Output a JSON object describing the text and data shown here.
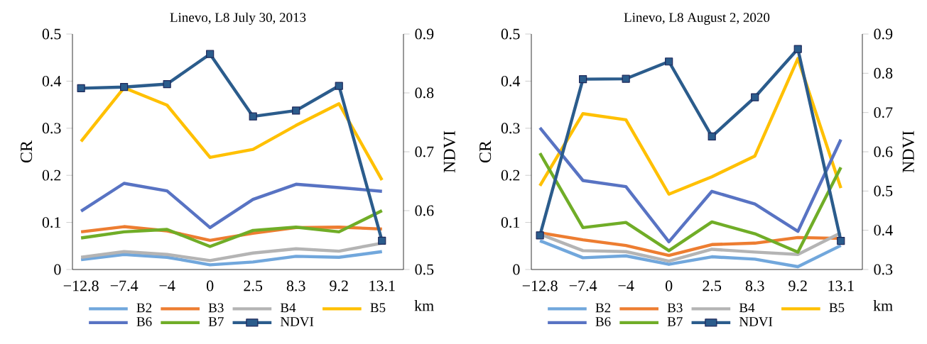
{
  "chart_data": [
    {
      "type": "line",
      "title": "Linevo, L8 July 30, 2013",
      "xlabel": "km",
      "ylabel": "CR",
      "y2label": "NDVI",
      "categories": [
        "−12.8",
        "−7.4",
        "−4",
        "0",
        "2.5",
        "8.3",
        "9.2",
        "13.1"
      ],
      "ylim": [
        0,
        0.5
      ],
      "yticks": [
        0,
        0.1,
        0.2,
        0.3,
        0.4,
        0.5
      ],
      "y2lim": [
        0.5,
        0.9
      ],
      "y2ticks": [
        0.5,
        0.6,
        0.7,
        0.8,
        0.9
      ],
      "legend": "bottom",
      "grid": false,
      "marker": "none",
      "line_style": "solid",
      "series": [
        {
          "name": "B2",
          "color": "#71a7dc",
          "values": [
            0.021,
            0.032,
            0.026,
            0.01,
            0.016,
            0.028,
            0.026,
            0.038
          ]
        },
        {
          "name": "B3",
          "color": "#ed7d31",
          "values": [
            0.08,
            0.091,
            0.082,
            0.062,
            0.077,
            0.089,
            0.09,
            0.086
          ]
        },
        {
          "name": "B4",
          "color": "#b4b4b4",
          "values": [
            0.026,
            0.038,
            0.032,
            0.019,
            0.035,
            0.044,
            0.039,
            0.056
          ]
        },
        {
          "name": "B5",
          "color": "#ffc000",
          "values": [
            0.272,
            0.386,
            0.349,
            0.238,
            0.255,
            0.306,
            0.352,
            0.19
          ]
        },
        {
          "name": "B6",
          "color": "#5873c3",
          "values": [
            0.124,
            0.183,
            0.167,
            0.089,
            0.149,
            0.181,
            0.174,
            0.166
          ]
        },
        {
          "name": "B7",
          "color": "#70ad27",
          "values": [
            0.067,
            0.08,
            0.085,
            0.049,
            0.083,
            0.09,
            0.08,
            0.125
          ]
        },
        {
          "name": "NDVI",
          "color": "#2b5c8c",
          "axis": "y2",
          "marker": "square",
          "values": [
            0.808,
            0.81,
            0.815,
            0.866,
            0.76,
            0.77,
            0.812,
            0.549
          ]
        }
      ]
    },
    {
      "type": "line",
      "title": "Linevo, L8 August 2, 2020",
      "xlabel": "km",
      "ylabel": "CR",
      "y2label": "NDVI",
      "categories": [
        "−12.8",
        "−7.4",
        "−4",
        "0",
        "2.5",
        "8.3",
        "9.2",
        "13.1"
      ],
      "ylim": [
        0,
        0.5
      ],
      "yticks": [
        0,
        0.1,
        0.2,
        0.3,
        0.4,
        0.5
      ],
      "y2lim": [
        0.3,
        0.9
      ],
      "y2ticks": [
        0.3,
        0.4,
        0.5,
        0.6,
        0.7,
        0.8,
        0.9
      ],
      "legend": "bottom",
      "grid": false,
      "marker": "none",
      "line_style": "solid",
      "series": [
        {
          "name": "B2",
          "color": "#71a7dc",
          "values": [
            0.061,
            0.025,
            0.029,
            0.011,
            0.027,
            0.022,
            0.006,
            0.051
          ]
        },
        {
          "name": "B3",
          "color": "#ed7d31",
          "values": [
            0.078,
            0.063,
            0.051,
            0.03,
            0.053,
            0.056,
            0.068,
            0.066
          ]
        },
        {
          "name": "B4",
          "color": "#b4b4b4",
          "values": [
            0.075,
            0.04,
            0.038,
            0.018,
            0.043,
            0.037,
            0.032,
            0.078
          ]
        },
        {
          "name": "B5",
          "color": "#ffc000",
          "values": [
            0.178,
            0.331,
            0.318,
            0.16,
            0.197,
            0.241,
            0.448,
            0.173
          ]
        },
        {
          "name": "B6",
          "color": "#5873c3",
          "values": [
            0.301,
            0.189,
            0.176,
            0.059,
            0.166,
            0.139,
            0.081,
            0.276
          ]
        },
        {
          "name": "B7",
          "color": "#70ad27",
          "values": [
            0.247,
            0.089,
            0.1,
            0.04,
            0.101,
            0.076,
            0.037,
            0.217
          ]
        },
        {
          "name": "NDVI",
          "color": "#2b5c8c",
          "axis": "y2",
          "marker": "square",
          "values": [
            0.387,
            0.785,
            0.786,
            0.83,
            0.639,
            0.739,
            0.862,
            0.373
          ]
        }
      ]
    }
  ]
}
